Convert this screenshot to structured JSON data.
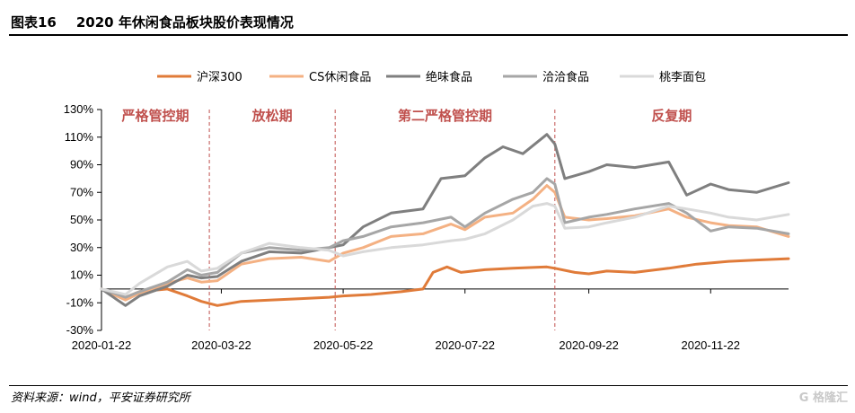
{
  "figure": {
    "number": "图表16",
    "title": "2020 年休闲食品板块股价表现情况",
    "source": "资料来源：wind，平安证券研究所",
    "watermark": "G 格隆汇"
  },
  "chart_data": {
    "type": "line",
    "title": "",
    "xlabel": "",
    "ylabel": "",
    "ylim": [
      -30,
      130
    ],
    "yticks": [
      -30,
      -10,
      10,
      30,
      50,
      70,
      90,
      110,
      130
    ],
    "ytick_labels": [
      "-30%",
      "-10%",
      "10%",
      "30%",
      "50%",
      "70%",
      "90%",
      "110%",
      "130%"
    ],
    "x_start": "2020-01-22",
    "x_end": "2020-12-31",
    "xticks": [
      "2020-01-22",
      "2020-03-22",
      "2020-05-22",
      "2020-07-22",
      "2020-09-22",
      "2020-11-22"
    ],
    "legend_position": "top",
    "grid": false,
    "phase_color": "#c0504d",
    "phases": [
      {
        "label": "严格管控期",
        "start": "2020-01-22",
        "end": "2020-03-16"
      },
      {
        "label": "放松期",
        "start": "2020-03-16",
        "end": "2020-05-18"
      },
      {
        "label": "第二严格管控期",
        "start": "2020-05-18",
        "end": "2020-09-05"
      },
      {
        "label": "反复期",
        "start": "2020-09-05",
        "end": "2020-12-31"
      }
    ],
    "series": [
      {
        "name": "沪深300",
        "color": "#e07b39",
        "width": 3,
        "points": [
          [
            "2020-01-22",
            0
          ],
          [
            "2020-02-03",
            -6
          ],
          [
            "2020-02-10",
            -2
          ],
          [
            "2020-02-24",
            0
          ],
          [
            "2020-03-05",
            -5
          ],
          [
            "2020-03-12",
            -9
          ],
          [
            "2020-03-20",
            -12
          ],
          [
            "2020-03-24",
            -11
          ],
          [
            "2020-04-01",
            -9
          ],
          [
            "2020-04-15",
            -8
          ],
          [
            "2020-05-01",
            -7
          ],
          [
            "2020-05-15",
            -6
          ],
          [
            "2020-05-22",
            -5
          ],
          [
            "2020-06-05",
            -4
          ],
          [
            "2020-06-20",
            -2
          ],
          [
            "2020-07-01",
            0
          ],
          [
            "2020-07-06",
            12
          ],
          [
            "2020-07-13",
            16
          ],
          [
            "2020-07-20",
            12
          ],
          [
            "2020-08-01",
            14
          ],
          [
            "2020-08-15",
            15
          ],
          [
            "2020-09-01",
            16
          ],
          [
            "2020-09-05",
            15
          ],
          [
            "2020-09-15",
            12
          ],
          [
            "2020-09-22",
            11
          ],
          [
            "2020-10-01",
            13
          ],
          [
            "2020-10-15",
            12
          ],
          [
            "2020-11-01",
            15
          ],
          [
            "2020-11-15",
            18
          ],
          [
            "2020-12-01",
            20
          ],
          [
            "2020-12-15",
            21
          ],
          [
            "2020-12-31",
            22
          ]
        ]
      },
      {
        "name": "CS休闲食品",
        "color": "#f4b183",
        "width": 3,
        "points": [
          [
            "2020-01-22",
            0
          ],
          [
            "2020-02-03",
            -8
          ],
          [
            "2020-02-10",
            -3
          ],
          [
            "2020-02-24",
            4
          ],
          [
            "2020-03-05",
            8
          ],
          [
            "2020-03-12",
            5
          ],
          [
            "2020-03-20",
            6
          ],
          [
            "2020-04-01",
            18
          ],
          [
            "2020-04-15",
            22
          ],
          [
            "2020-05-01",
            23
          ],
          [
            "2020-05-15",
            20
          ],
          [
            "2020-05-22",
            26
          ],
          [
            "2020-06-01",
            30
          ],
          [
            "2020-06-15",
            38
          ],
          [
            "2020-07-01",
            40
          ],
          [
            "2020-07-15",
            47
          ],
          [
            "2020-07-22",
            43
          ],
          [
            "2020-08-01",
            52
          ],
          [
            "2020-08-15",
            55
          ],
          [
            "2020-08-25",
            65
          ],
          [
            "2020-09-01",
            75
          ],
          [
            "2020-09-05",
            70
          ],
          [
            "2020-09-10",
            52
          ],
          [
            "2020-09-22",
            50
          ],
          [
            "2020-10-01",
            51
          ],
          [
            "2020-10-15",
            53
          ],
          [
            "2020-11-01",
            58
          ],
          [
            "2020-11-10",
            52
          ],
          [
            "2020-11-22",
            48
          ],
          [
            "2020-12-01",
            46
          ],
          [
            "2020-12-15",
            45
          ],
          [
            "2020-12-31",
            38
          ]
        ]
      },
      {
        "name": "绝味食品",
        "color": "#7f7f7f",
        "width": 3,
        "points": [
          [
            "2020-01-22",
            0
          ],
          [
            "2020-02-03",
            -12
          ],
          [
            "2020-02-10",
            -5
          ],
          [
            "2020-02-24",
            2
          ],
          [
            "2020-03-05",
            10
          ],
          [
            "2020-03-12",
            8
          ],
          [
            "2020-03-20",
            9
          ],
          [
            "2020-04-01",
            20
          ],
          [
            "2020-04-15",
            27
          ],
          [
            "2020-05-01",
            26
          ],
          [
            "2020-05-15",
            30
          ],
          [
            "2020-05-22",
            32
          ],
          [
            "2020-06-01",
            45
          ],
          [
            "2020-06-15",
            55
          ],
          [
            "2020-07-01",
            58
          ],
          [
            "2020-07-10",
            80
          ],
          [
            "2020-07-22",
            82
          ],
          [
            "2020-08-01",
            95
          ],
          [
            "2020-08-10",
            103
          ],
          [
            "2020-08-20",
            98
          ],
          [
            "2020-09-01",
            112
          ],
          [
            "2020-09-05",
            105
          ],
          [
            "2020-09-10",
            80
          ],
          [
            "2020-09-22",
            85
          ],
          [
            "2020-10-01",
            90
          ],
          [
            "2020-10-15",
            88
          ],
          [
            "2020-11-01",
            92
          ],
          [
            "2020-11-10",
            68
          ],
          [
            "2020-11-22",
            76
          ],
          [
            "2020-12-01",
            72
          ],
          [
            "2020-12-15",
            70
          ],
          [
            "2020-12-31",
            77
          ]
        ]
      },
      {
        "name": "洽洽食品",
        "color": "#a6a6a6",
        "width": 3,
        "points": [
          [
            "2020-01-22",
            0
          ],
          [
            "2020-02-03",
            -6
          ],
          [
            "2020-02-10",
            -2
          ],
          [
            "2020-02-24",
            5
          ],
          [
            "2020-03-05",
            14
          ],
          [
            "2020-03-12",
            10
          ],
          [
            "2020-03-20",
            12
          ],
          [
            "2020-04-01",
            26
          ],
          [
            "2020-04-15",
            30
          ],
          [
            "2020-05-01",
            28
          ],
          [
            "2020-05-15",
            30
          ],
          [
            "2020-05-22",
            35
          ],
          [
            "2020-06-01",
            38
          ],
          [
            "2020-06-15",
            45
          ],
          [
            "2020-07-01",
            48
          ],
          [
            "2020-07-15",
            52
          ],
          [
            "2020-07-22",
            45
          ],
          [
            "2020-08-01",
            55
          ],
          [
            "2020-08-15",
            65
          ],
          [
            "2020-08-25",
            70
          ],
          [
            "2020-09-01",
            80
          ],
          [
            "2020-09-05",
            76
          ],
          [
            "2020-09-10",
            48
          ],
          [
            "2020-09-22",
            52
          ],
          [
            "2020-10-01",
            54
          ],
          [
            "2020-10-15",
            58
          ],
          [
            "2020-11-01",
            62
          ],
          [
            "2020-11-10",
            55
          ],
          [
            "2020-11-22",
            42
          ],
          [
            "2020-12-01",
            45
          ],
          [
            "2020-12-15",
            44
          ],
          [
            "2020-12-31",
            40
          ]
        ]
      },
      {
        "name": "桃李面包",
        "color": "#d9d9d9",
        "width": 3,
        "points": [
          [
            "2020-01-22",
            0
          ],
          [
            "2020-02-03",
            -4
          ],
          [
            "2020-02-10",
            4
          ],
          [
            "2020-02-24",
            16
          ],
          [
            "2020-03-05",
            20
          ],
          [
            "2020-03-12",
            13
          ],
          [
            "2020-03-20",
            15
          ],
          [
            "2020-04-01",
            26
          ],
          [
            "2020-04-15",
            33
          ],
          [
            "2020-05-01",
            30
          ],
          [
            "2020-05-15",
            28
          ],
          [
            "2020-05-22",
            24
          ],
          [
            "2020-06-01",
            27
          ],
          [
            "2020-06-15",
            30
          ],
          [
            "2020-07-01",
            32
          ],
          [
            "2020-07-15",
            35
          ],
          [
            "2020-07-22",
            36
          ],
          [
            "2020-08-01",
            40
          ],
          [
            "2020-08-15",
            50
          ],
          [
            "2020-08-25",
            60
          ],
          [
            "2020-09-01",
            62
          ],
          [
            "2020-09-05",
            60
          ],
          [
            "2020-09-10",
            44
          ],
          [
            "2020-09-22",
            45
          ],
          [
            "2020-10-01",
            48
          ],
          [
            "2020-10-15",
            52
          ],
          [
            "2020-11-01",
            60
          ],
          [
            "2020-11-10",
            58
          ],
          [
            "2020-11-22",
            55
          ],
          [
            "2020-12-01",
            52
          ],
          [
            "2020-12-15",
            50
          ],
          [
            "2020-12-31",
            54
          ]
        ]
      }
    ]
  }
}
